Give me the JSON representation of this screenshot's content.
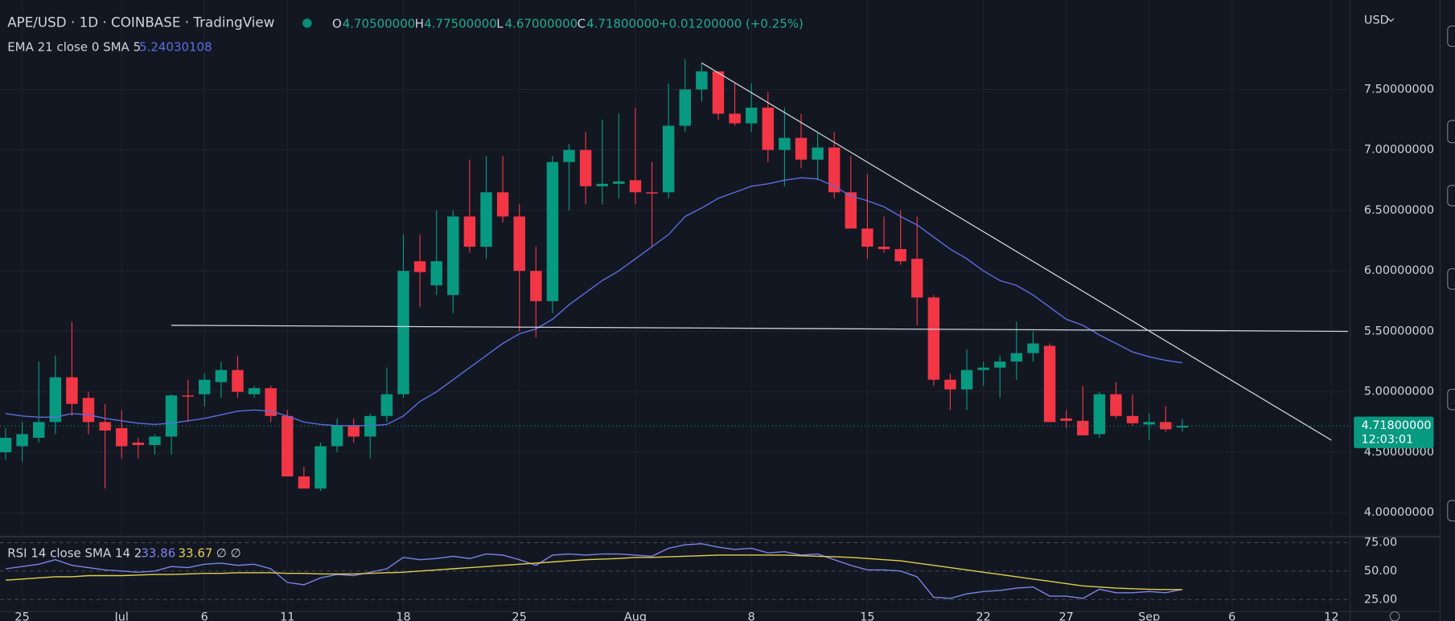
{
  "chart_data": [
    {
      "type": "candlestick",
      "title": "APE/USD · 1D · COINBASE · TradingView",
      "currency": "USD",
      "legend": {
        "open_label": "O",
        "open": "4.70500000",
        "high_label": "H",
        "high": "4.77500000",
        "low_label": "L",
        "low": "4.67000000",
        "close_label": "C",
        "close": "4.71800000",
        "change": "+0.01200000 (+0.25%)"
      },
      "open": [
        4.5,
        4.55,
        4.62,
        4.75,
        5.12,
        4.95,
        4.75,
        4.7,
        4.58,
        4.56,
        4.63,
        4.97,
        4.98,
        5.08,
        5.18,
        4.98,
        5.03,
        4.8,
        4.3,
        4.2,
        4.55,
        4.72,
        4.63,
        4.8,
        4.98,
        6.08,
        5.88,
        5.8,
        6.45,
        6.2,
        6.65,
        6.45,
        6.0,
        5.75,
        6.9,
        7.0,
        6.7,
        6.72,
        6.75,
        6.65,
        6.65,
        7.2,
        7.5,
        7.65,
        7.3,
        7.22,
        7.35,
        7.0,
        7.1,
        6.92,
        7.02,
        6.65,
        6.35,
        6.2,
        6.18,
        6.1,
        5.78,
        5.1,
        5.02,
        5.18,
        5.2,
        5.25,
        5.32,
        5.38,
        4.78,
        4.76,
        4.65,
        4.98,
        4.8,
        4.73,
        4.75,
        4.705
      ],
      "high": [
        4.7,
        4.75,
        5.25,
        5.3,
        5.58,
        5.0,
        4.9,
        4.85,
        4.62,
        4.65,
        4.98,
        5.1,
        5.15,
        5.25,
        5.3,
        5.05,
        5.05,
        4.85,
        4.38,
        4.58,
        4.78,
        4.78,
        4.82,
        5.2,
        6.3,
        6.3,
        6.5,
        6.5,
        6.92,
        6.95,
        6.95,
        6.55,
        6.2,
        6.95,
        7.05,
        7.15,
        7.25,
        7.3,
        7.35,
        6.9,
        7.55,
        7.75,
        7.72,
        7.65,
        7.55,
        7.55,
        7.48,
        7.35,
        7.3,
        7.15,
        7.15,
        6.95,
        6.8,
        6.45,
        6.5,
        6.45,
        5.8,
        5.15,
        5.35,
        5.25,
        5.3,
        5.58,
        5.5,
        5.4,
        4.85,
        5.05,
        5.0,
        5.08,
        4.98,
        4.82,
        4.88,
        4.775
      ],
      "low": [
        4.44,
        4.42,
        4.58,
        4.65,
        4.8,
        4.65,
        4.2,
        4.45,
        4.45,
        4.48,
        4.48,
        4.75,
        4.88,
        4.95,
        4.95,
        4.95,
        4.75,
        4.3,
        4.2,
        4.18,
        4.5,
        4.58,
        4.45,
        4.75,
        4.95,
        5.7,
        5.8,
        5.65,
        6.15,
        6.1,
        6.4,
        5.5,
        5.45,
        5.65,
        6.5,
        6.55,
        6.55,
        6.6,
        6.55,
        6.2,
        6.6,
        7.15,
        7.4,
        7.25,
        7.2,
        7.15,
        6.9,
        6.7,
        6.85,
        6.75,
        6.6,
        6.35,
        6.1,
        6.15,
        6.05,
        5.55,
        5.05,
        4.85,
        4.85,
        5.05,
        4.95,
        5.1,
        5.25,
        4.75,
        4.7,
        4.65,
        4.62,
        4.78,
        4.72,
        4.6,
        4.67,
        4.67
      ],
      "close": [
        4.62,
        4.65,
        4.75,
        5.12,
        4.9,
        4.75,
        4.68,
        4.55,
        4.56,
        4.63,
        4.97,
        4.96,
        5.1,
        5.18,
        5.0,
        5.03,
        4.8,
        4.3,
        4.2,
        4.55,
        4.72,
        4.63,
        4.8,
        4.98,
        6.0,
        5.99,
        6.08,
        6.45,
        6.2,
        6.65,
        6.45,
        6.0,
        5.75,
        6.9,
        7.0,
        6.7,
        6.72,
        6.74,
        6.65,
        6.64,
        7.2,
        7.5,
        7.65,
        7.3,
        7.22,
        7.35,
        7.0,
        7.1,
        6.92,
        7.02,
        6.65,
        6.35,
        6.2,
        6.18,
        6.08,
        5.78,
        5.1,
        5.02,
        5.18,
        5.2,
        5.25,
        5.32,
        5.4,
        4.75,
        4.76,
        4.64,
        4.98,
        4.8,
        4.74,
        4.75,
        4.69,
        4.718
      ],
      "up_color": "#089981",
      "down_color": "#f23645",
      "ema": {
        "name": "EMA 21 close 0 SMA 5",
        "color": "#5b6ee1",
        "values": [
          4.82,
          4.8,
          4.79,
          4.79,
          4.82,
          4.81,
          4.78,
          4.76,
          4.74,
          4.73,
          4.74,
          4.76,
          4.78,
          4.81,
          4.84,
          4.85,
          4.84,
          4.8,
          4.75,
          4.73,
          4.72,
          4.72,
          4.72,
          4.73,
          4.8,
          4.92,
          5.0,
          5.1,
          5.2,
          5.3,
          5.4,
          5.48,
          5.52,
          5.6,
          5.72,
          5.82,
          5.92,
          6.0,
          6.1,
          6.2,
          6.3,
          6.45,
          6.52,
          6.6,
          6.65,
          6.7,
          6.72,
          6.75,
          6.77,
          6.76,
          6.7,
          6.62,
          6.58,
          6.53,
          6.45,
          6.38,
          6.28,
          6.18,
          6.1,
          6.0,
          5.92,
          5.88,
          5.8,
          5.7,
          5.6,
          5.55,
          5.47,
          5.4,
          5.33,
          5.29,
          5.26,
          5.24030108
        ]
      },
      "trendlines": [
        {
          "color": "#d1d4dc",
          "x": [
            10,
            81
          ],
          "y": [
            5.55,
            5.5
          ]
        },
        {
          "color": "#d1d4dc",
          "x": [
            42,
            80
          ],
          "y": [
            7.72,
            4.6
          ]
        }
      ],
      "last_price": {
        "label": "4.71800000",
        "countdown": "12:03:01"
      },
      "xlim": [
        -0.34,
        81.13
      ],
      "xticks": [
        {
          "value": 1,
          "label": "25"
        },
        {
          "value": 7,
          "label": "Jul"
        },
        {
          "value": 12,
          "label": "6"
        },
        {
          "value": 17,
          "label": "11"
        },
        {
          "value": 24,
          "label": "18"
        },
        {
          "value": 31,
          "label": "25"
        },
        {
          "value": 38,
          "label": "Aug"
        },
        {
          "value": 45,
          "label": "8"
        },
        {
          "value": 52,
          "label": "15"
        },
        {
          "value": 59,
          "label": "22"
        },
        {
          "value": 64,
          "label": "27"
        },
        {
          "value": 69,
          "label": "Sep"
        },
        {
          "value": 74,
          "label": "6"
        },
        {
          "value": 80,
          "label": "12"
        }
      ],
      "ylim": [
        3.81,
        8.24
      ],
      "yticks": [
        {
          "value": 4.0,
          "label": "4.00000000"
        },
        {
          "value": 4.5,
          "label": "4.50000000"
        },
        {
          "value": 5.0,
          "label": "5.00000000"
        },
        {
          "value": 5.5,
          "label": "5.50000000"
        },
        {
          "value": 6.0,
          "label": "6.00000000"
        },
        {
          "value": 6.5,
          "label": "6.50000000"
        },
        {
          "value": 7.0,
          "label": "7.00000000"
        },
        {
          "value": 7.5,
          "label": "7.50000000"
        }
      ],
      "grid": true
    },
    {
      "type": "line",
      "title": "RSI 14 close SMA 14 2",
      "extra": "∅ ∅",
      "series": [
        {
          "color": "#7b84e8",
          "values": [
            52,
            54,
            56,
            60,
            55,
            53,
            51,
            50,
            49,
            50,
            54,
            53,
            56,
            57,
            55,
            56,
            52,
            40,
            38,
            44,
            47,
            46,
            49,
            52,
            62,
            60,
            61,
            63,
            61,
            65,
            64,
            60,
            55,
            64,
            65,
            64,
            65,
            65,
            64,
            63,
            70,
            73,
            74,
            71,
            69,
            70,
            66,
            67,
            64,
            65,
            60,
            55,
            51,
            51,
            50,
            45,
            27,
            26,
            30,
            32,
            33,
            35,
            36,
            28,
            28,
            26,
            34,
            31,
            31,
            32,
            31,
            33.86
          ]
        },
        {
          "color": "#e2cf4b",
          "values": [
            42,
            43,
            44,
            45,
            45,
            46,
            46,
            46,
            46.5,
            47,
            47,
            47.5,
            48,
            48,
            48.5,
            48.5,
            48.5,
            48,
            48,
            47.5,
            47.5,
            47.5,
            48,
            48.5,
            49,
            50,
            51,
            52,
            53,
            54,
            55,
            56,
            57,
            58,
            59,
            60,
            60.5,
            61,
            62,
            62,
            62.5,
            63,
            63.5,
            64,
            64,
            64,
            64,
            64,
            63.5,
            63,
            62.5,
            62,
            61,
            60,
            59,
            57,
            55,
            53,
            51,
            49,
            47,
            45,
            43,
            41,
            39,
            37,
            36,
            35,
            34.5,
            34,
            33.8,
            33.67
          ]
        }
      ],
      "ylim": [
        14.3,
        79.4
      ],
      "yticks": [
        {
          "value": 25,
          "label": "25.00"
        },
        {
          "value": 50,
          "label": "50.00"
        },
        {
          "value": 75,
          "label": "75.00"
        }
      ],
      "grid": true
    }
  ]
}
